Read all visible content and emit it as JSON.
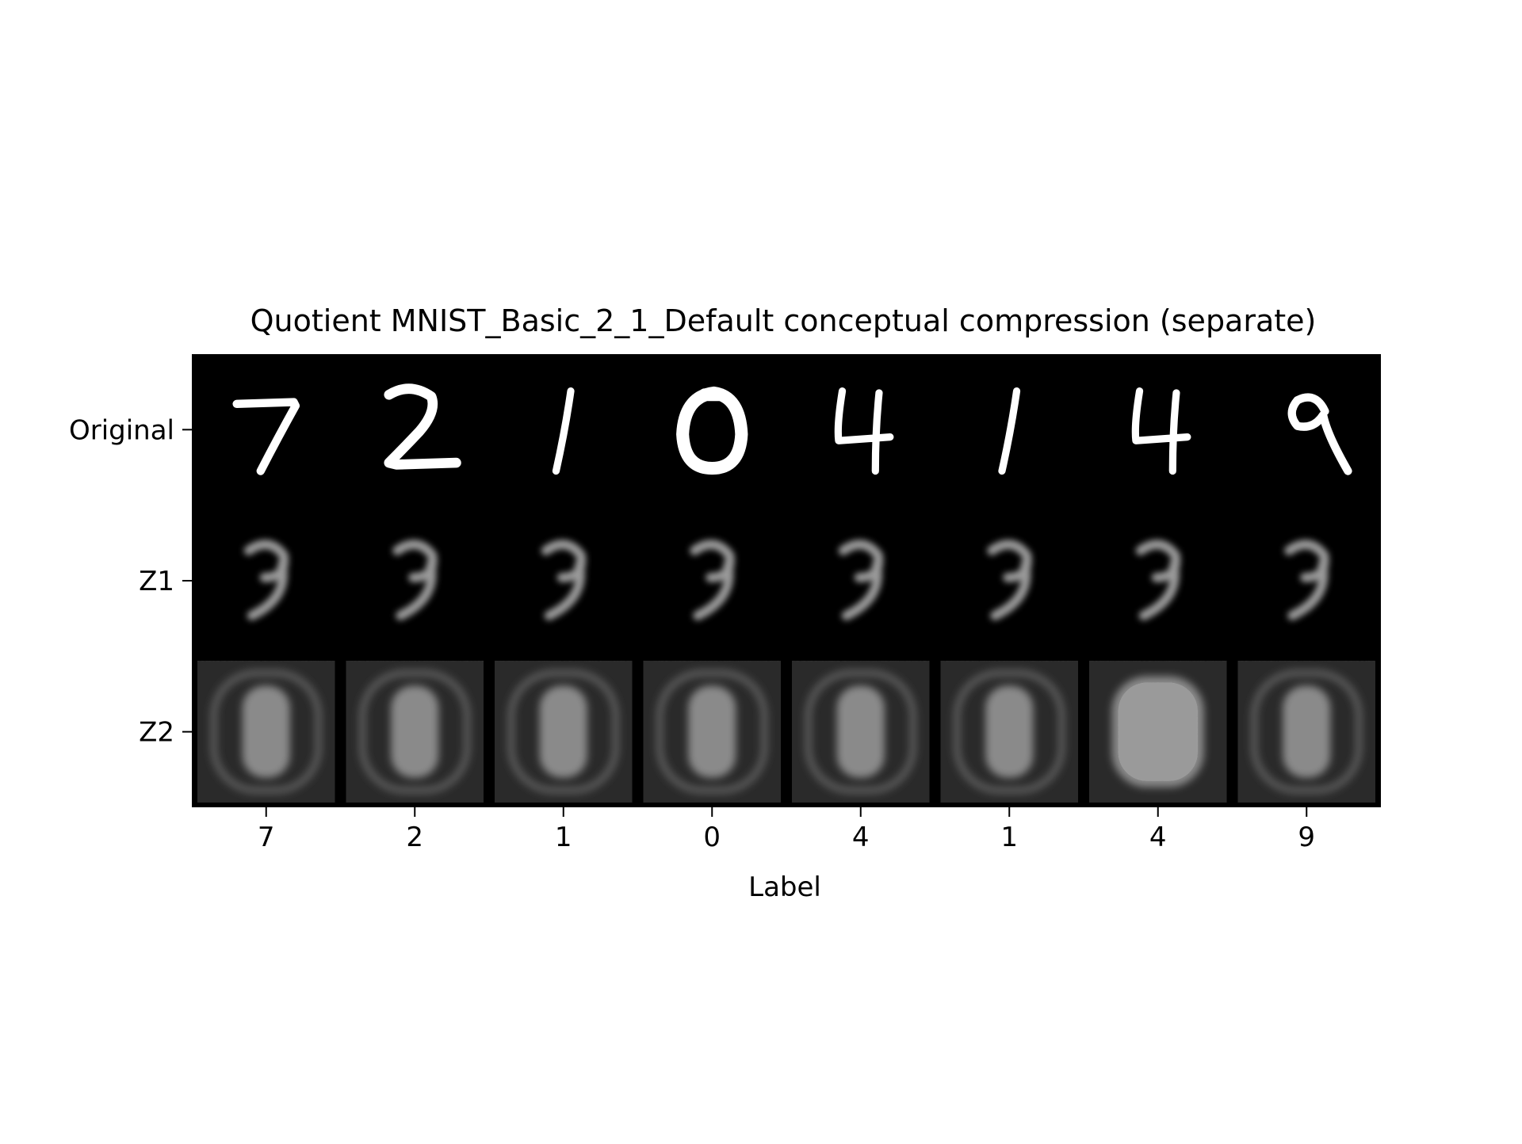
{
  "chart_data": {
    "type": "image-grid",
    "title": "Quotient MNIST_Basic_2_1_Default conceptual compression (separate)",
    "xlabel": "Label",
    "ylabel": "",
    "rows": [
      "Original",
      "Z1",
      "Z2"
    ],
    "labels": [
      "7",
      "2",
      "1",
      "0",
      "4",
      "1",
      "4",
      "9"
    ],
    "colors": {
      "background": "#000000",
      "digit": "#ffffff",
      "z1_blur": "#9a9a9a",
      "z2_tile": "#2a2a2a",
      "z2_blob": "#8a8a8a"
    },
    "z2_variant": [
      "ring",
      "ring",
      "ring",
      "ring",
      "ring",
      "ring",
      "blob",
      "ring"
    ]
  }
}
